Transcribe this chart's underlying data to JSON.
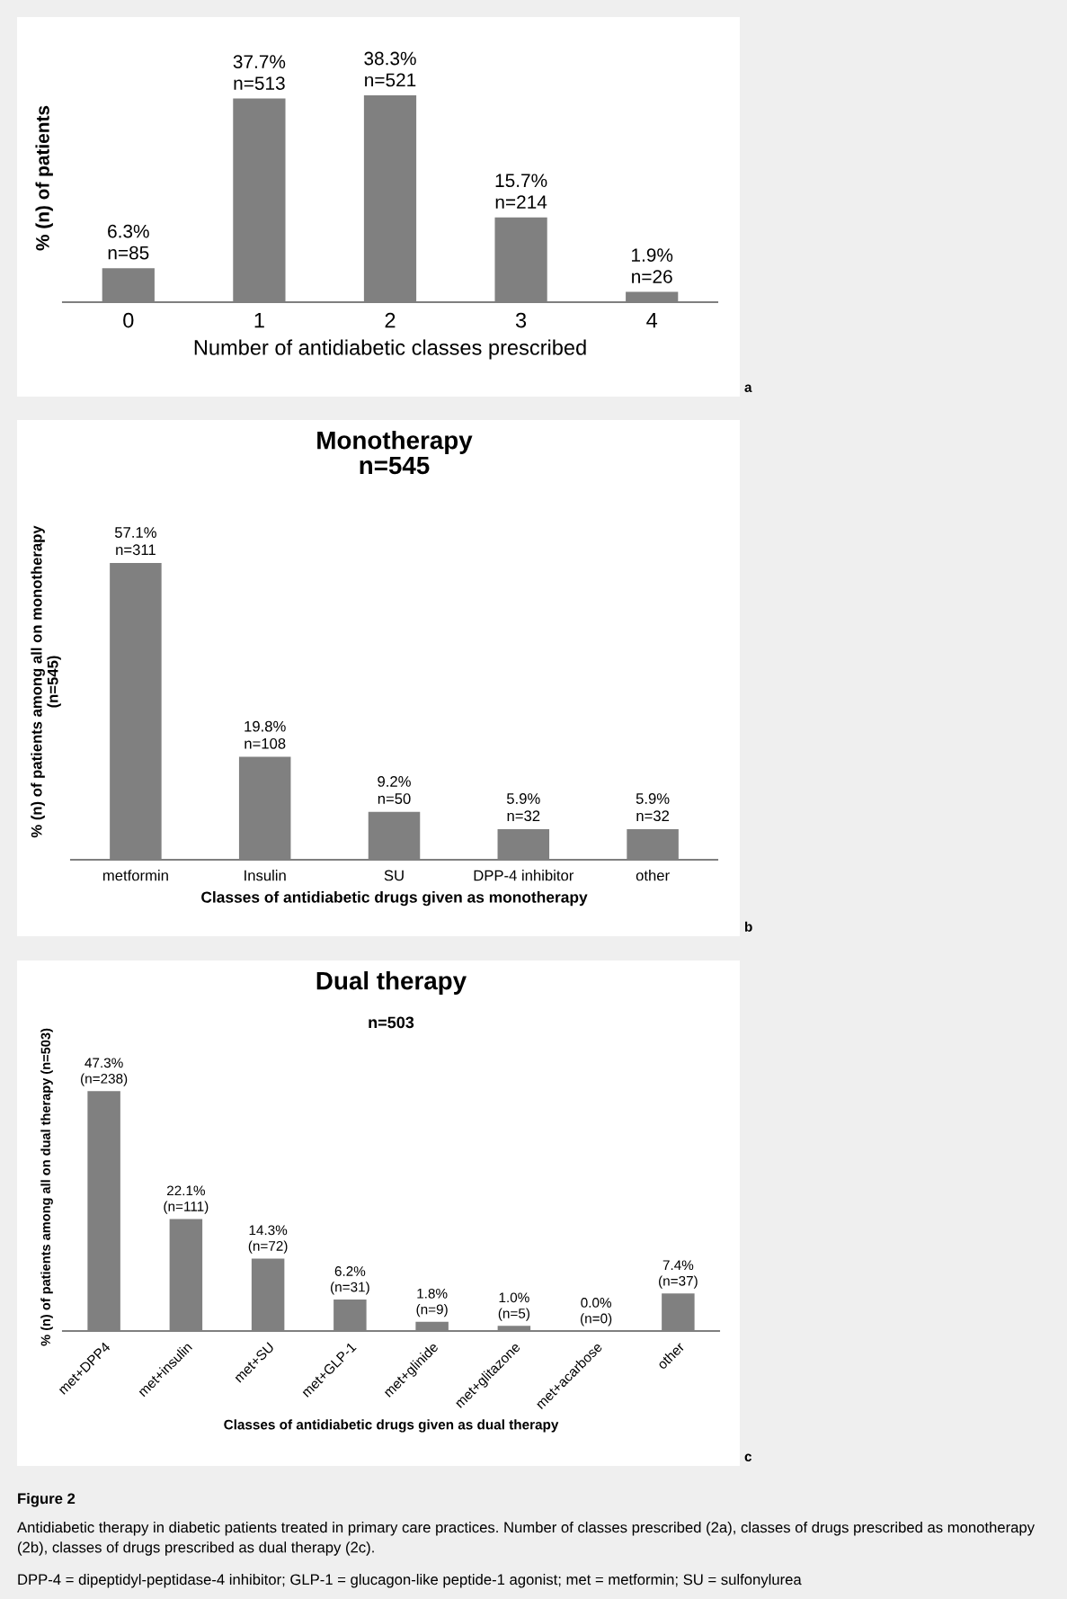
{
  "chart_data": [
    {
      "type": "bar",
      "xlabel": "Number of antidiabetic classes prescribed",
      "ylabel": "% (n) of patients",
      "categories": [
        "0",
        "1",
        "2",
        "3",
        "4"
      ],
      "values": [
        6.3,
        37.7,
        38.3,
        15.7,
        1.9
      ],
      "color": "#808080",
      "value_labels": [
        "6.3%\nn=85",
        "37.7%\nn=513",
        "38.3%\nn=521",
        "15.7%\nn=214",
        "1.9%\nn=26"
      ],
      "annotations": [
        "a"
      ]
    },
    {
      "type": "bar",
      "title": "Monotherapy\nn=545",
      "xlabel": "Classes of antidiabetic drugs given as monotherapy",
      "ylabel": "% (n) of patients among all on monotherapy\n(n=545)",
      "categories": [
        "metformin",
        "Insulin",
        "SU",
        "DPP-4 inhibitor",
        "other"
      ],
      "values": [
        57.1,
        19.8,
        9.2,
        5.9,
        5.9
      ],
      "color": "#808080",
      "value_labels": [
        "57.1%\nn=311",
        "19.8%\nn=108",
        "9.2%\nn=50",
        "5.9%\nn=32",
        "5.9%\nn=32"
      ],
      "annotations": [
        "b"
      ]
    },
    {
      "type": "bar",
      "title": "Dual therapy",
      "subtitle": "n=503",
      "xlabel": "Classes of antidiabetic drugs given as dual therapy",
      "ylabel": "% (n) of patients among all on dual therapy (n=503)",
      "categories": [
        "met+DPP4",
        "met+insulin",
        "met+SU",
        "met+GLP-1",
        "met+glinide",
        "met+glitazone",
        "met+acarbose",
        "other"
      ],
      "values": [
        47.3,
        22.1,
        14.3,
        6.2,
        1.8,
        1.0,
        0.0,
        7.4
      ],
      "color": "#808080",
      "value_labels": [
        "47.3%\n(n=238)",
        "22.1%\n(n=111)",
        "14.3%\n(n=72)",
        "6.2%\n(n=31)",
        "1.8%\n(n=9)",
        "1.0%\n(n=5)",
        "0.0%\n(n=0)",
        "7.4%\n(n=37)"
      ],
      "annotations": [
        "c",
        "Figure 2",
        "Antidiabetic therapy in diabetic patients treated in primary care practices. Number of classes prescribed (2a), classes of drugs prescribed as monotherapy (2b), classes of drugs prescribed as dual therapy (2c).",
        "DPP-4 = dipeptidyl-peptidase-4 inhibitor; GLP-1 = glucagon-like peptide-1 agonist; met = metformin; SU = sulfonylurea"
      ]
    }
  ]
}
